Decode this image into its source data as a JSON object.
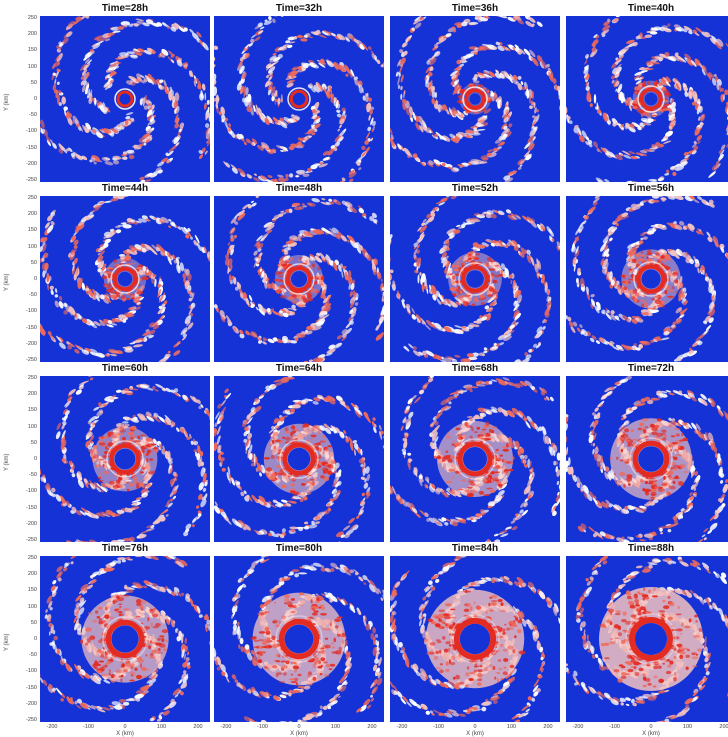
{
  "panels": [
    {
      "title": "Time=28h",
      "stage": 0
    },
    {
      "title": "Time=32h",
      "stage": 1
    },
    {
      "title": "Time=36h",
      "stage": 2
    },
    {
      "title": "Time=40h",
      "stage": 3
    },
    {
      "title": "Time=44h",
      "stage": 4
    },
    {
      "title": "Time=48h",
      "stage": 5
    },
    {
      "title": "Time=52h",
      "stage": 6
    },
    {
      "title": "Time=56h",
      "stage": 7
    },
    {
      "title": "Time=60h",
      "stage": 8
    },
    {
      "title": "Time=64h",
      "stage": 9
    },
    {
      "title": "Time=68h",
      "stage": 10
    },
    {
      "title": "Time=72h",
      "stage": 11
    },
    {
      "title": "Time=76h",
      "stage": 12
    },
    {
      "title": "Time=80h",
      "stage": 13
    },
    {
      "title": "Time=84h",
      "stage": 14
    },
    {
      "title": "Time=88h",
      "stage": 15
    }
  ],
  "axes": {
    "ylabel": "Y (km)",
    "xlabel": "X (km)",
    "yticks": [
      "250",
      "200",
      "150",
      "100",
      "50",
      "0",
      "-50",
      "-100",
      "-150",
      "-200",
      "-250"
    ],
    "xticks": [
      "-200",
      "-100",
      "0",
      "100",
      "200"
    ]
  },
  "colors": {
    "background": "#1432d6",
    "light": "#f3c2c0",
    "medium": "#ee6a5c",
    "strong": "#e32b22",
    "white": "#ffffff"
  }
}
